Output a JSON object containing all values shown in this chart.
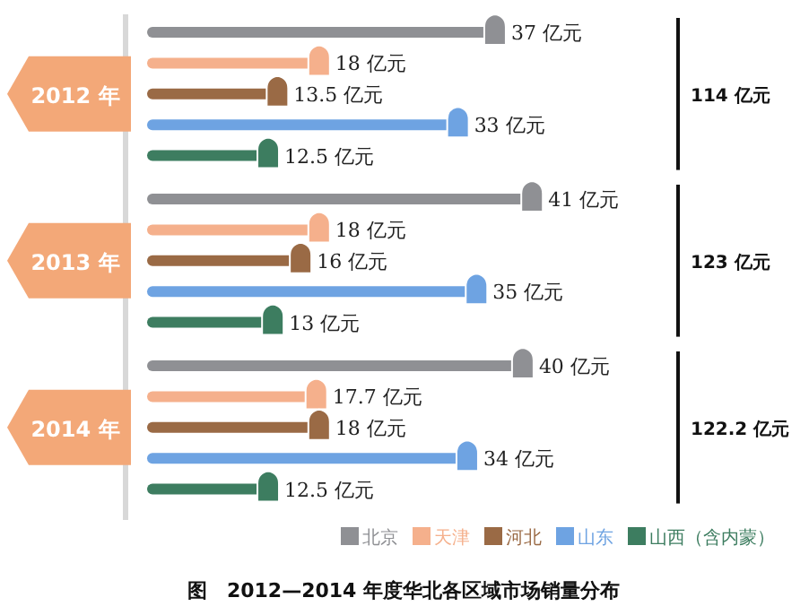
{
  "chart_data": {
    "type": "lollipop",
    "orientation": "horizontal",
    "title": "图　2012—2014 年度华北各区域市场销量分布",
    "categories": [
      "2012 年",
      "2013 年",
      "2014 年"
    ],
    "series": [
      {
        "name": "北京",
        "color": "#8f9094",
        "values": [
          37,
          41,
          40
        ],
        "value_labels": [
          "37 亿元",
          "41 亿元",
          "40 亿元"
        ]
      },
      {
        "name": "天津",
        "color": "#f5b08c",
        "values": [
          18,
          18,
          17.7
        ],
        "value_labels": [
          "18 亿元",
          "18 亿元",
          "17.7 亿元"
        ]
      },
      {
        "name": "河北",
        "color": "#9a6a45",
        "values": [
          13.5,
          16,
          18
        ],
        "value_labels": [
          "13.5 亿元",
          "16 亿元",
          "18 亿元"
        ]
      },
      {
        "name": "山东",
        "color": "#6ea3e2",
        "values": [
          33,
          35,
          34
        ],
        "value_labels": [
          "33 亿元",
          "35 亿元",
          "34 亿元"
        ]
      },
      {
        "name": "山西（含内蒙）",
        "color": "#3d7d60",
        "values": [
          12.5,
          13,
          12.5
        ],
        "value_labels": [
          "12.5 亿元",
          "13 亿元",
          "12.5 亿元"
        ]
      }
    ],
    "totals": [
      "114 亿元",
      "123 亿元",
      "122.2 亿元"
    ],
    "legend": "bottom"
  }
}
